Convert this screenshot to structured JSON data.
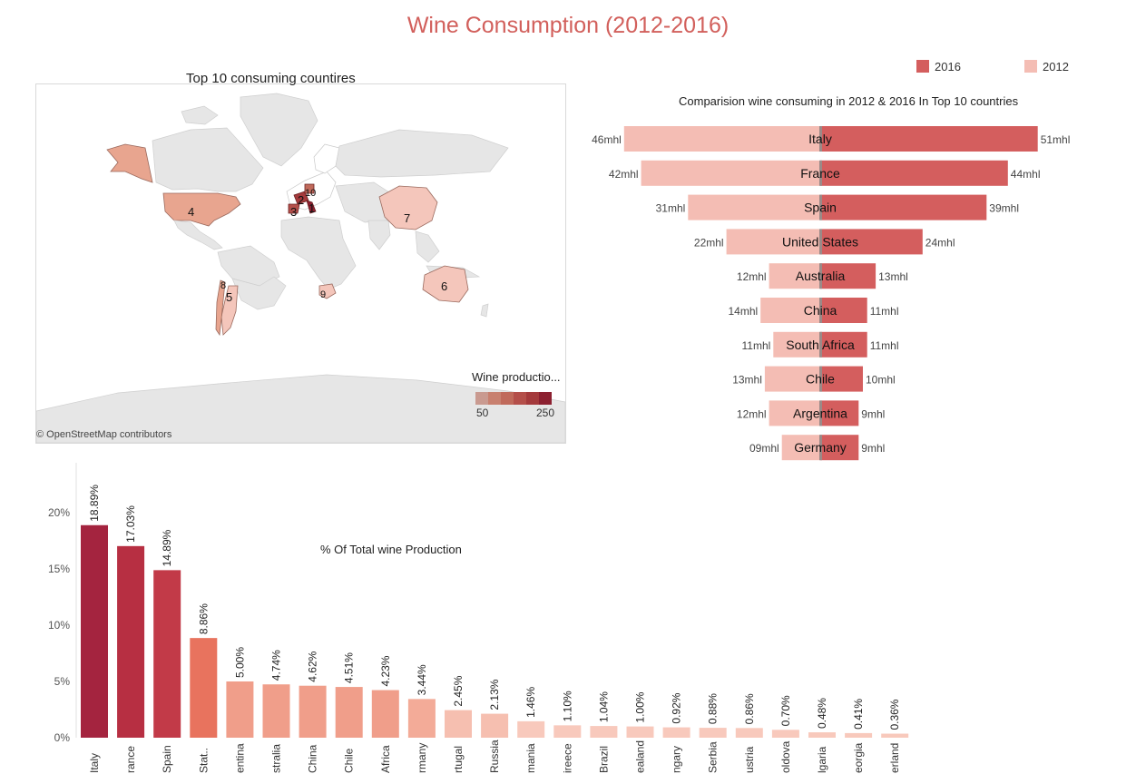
{
  "page_title": "Wine Consumption (2012-2016)",
  "colors": {
    "title": "#d2605c",
    "bar_2016": "#d45e5e",
    "bar_2012": "#f4bdb4",
    "land": "#e6e6e6",
    "land_europe": "#ffffff"
  },
  "map": {
    "title": "Top 10 consuming countires",
    "credit": "© OpenStreetMap contributors",
    "legend": {
      "title": "Wine productio...",
      "low": "50",
      "high": "250",
      "colors": [
        "#c99a90",
        "#c8806f",
        "#c06a5b",
        "#b44f4a",
        "#a43a3c",
        "#8c2030"
      ]
    },
    "country_ranks": [
      {
        "rank": "1",
        "country": "Italy"
      },
      {
        "rank": "2",
        "country": "France"
      },
      {
        "rank": "3",
        "country": "Spain"
      },
      {
        "rank": "4",
        "country": "United States"
      },
      {
        "rank": "5",
        "country": "Argentina"
      },
      {
        "rank": "6",
        "country": "Australia"
      },
      {
        "rank": "7",
        "country": "China"
      },
      {
        "rank": "8",
        "country": "Chile"
      },
      {
        "rank": "9",
        "country": "South Africa"
      },
      {
        "rank": "10",
        "country": "Germany"
      }
    ]
  },
  "chart_data": [
    {
      "type": "bar",
      "title": "Comparision wine consuming in 2012 & 2016 In Top 10 countries",
      "orientation": "horizontal-diverging",
      "categories": [
        "Italy",
        "France",
        "Spain",
        "United States",
        "Australia",
        "China",
        "South Africa",
        "Chile",
        "Argentina",
        "Germany"
      ],
      "series": [
        {
          "name": "2016",
          "values": [
            51,
            44,
            39,
            24,
            13,
            11,
            11,
            10,
            9,
            9
          ],
          "labels": [
            "51mhl",
            "44mhl",
            "39mhl",
            "24mhl",
            "13mhl",
            "11mhl",
            "11mhl",
            "10mhl",
            "9mhl",
            "9mhl"
          ]
        },
        {
          "name": "2012",
          "values": [
            46,
            42,
            31,
            22,
            12,
            14,
            11,
            13,
            12,
            9
          ],
          "labels": [
            "46mhl",
            "42mhl",
            "31mhl",
            "22mhl",
            "12mhl",
            "14mhl",
            "11mhl",
            "13mhl",
            "12mhl",
            "09mhl"
          ]
        }
      ],
      "legend_position": "top-right"
    },
    {
      "type": "bar",
      "title": "% Of Total wine Production",
      "categories": [
        "Italy",
        "France",
        "Spain",
        "United Stat..",
        "Argentina",
        "Australia",
        "China",
        "Chile",
        "South Africa",
        "Germany",
        "Portugal",
        "Russia",
        "Romania",
        "Greece",
        "Brazil",
        "New Zealand",
        "Hungary",
        "Serbia",
        "Austria",
        "Moldova",
        "Bulgaria",
        "Georgia",
        "Switzerland"
      ],
      "tick_labels": [
        "Italy",
        "rance",
        "Spain",
        "Stat..",
        "entina",
        "stralia",
        "China",
        "Chile",
        "Africa",
        "rmany",
        "rtugal",
        "Russia",
        "mania",
        "ireece",
        "Brazil",
        "ealand",
        "ngary",
        "Serbia",
        "ustria",
        "oldova",
        "lgaria",
        "eorgia",
        "erland"
      ],
      "values": [
        18.89,
        17.03,
        14.89,
        8.86,
        5.0,
        4.74,
        4.62,
        4.51,
        4.23,
        3.44,
        2.45,
        2.13,
        1.46,
        1.1,
        1.04,
        1.0,
        0.92,
        0.88,
        0.86,
        0.7,
        0.48,
        0.41,
        0.36
      ],
      "value_labels": [
        "18.89%",
        "17.03%",
        "14.89%",
        "8.86%",
        "5.00%",
        "4.74%",
        "4.62%",
        "4.51%",
        "4.23%",
        "3.44%",
        "2.45%",
        "2.13%",
        "1.46%",
        "1.10%",
        "1.04%",
        "1.00%",
        "0.92%",
        "0.88%",
        "0.86%",
        "0.70%",
        "0.48%",
        "0.41%",
        "0.36%"
      ],
      "colors": [
        "#a4243f",
        "#b72f42",
        "#c23a48",
        "#e8735e",
        "#f09e8a",
        "#f09e8a",
        "#f09e8a",
        "#f09e8a",
        "#f09e8a",
        "#f3ab98",
        "#f6bfb0",
        "#f6bfb0",
        "#f8c9bc",
        "#f8c9bc",
        "#f8c9bc",
        "#f8c9bc",
        "#f8c9bc",
        "#f8c9bc",
        "#f8c9bc",
        "#f8c9bc",
        "#f8c9bc",
        "#f8c9bc",
        "#f8c9bc"
      ],
      "ylim": [
        0,
        20
      ],
      "yticks": [
        "0%",
        "5%",
        "10%",
        "15%",
        "20%"
      ]
    }
  ]
}
